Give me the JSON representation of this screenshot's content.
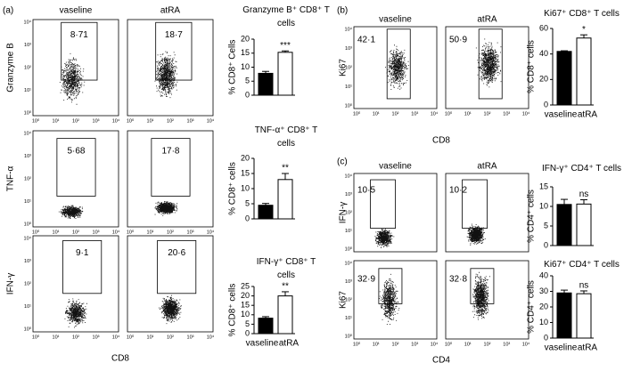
{
  "flow_ticks": [
    "10⁰",
    "10¹",
    "10²",
    "10³",
    "10⁴"
  ],
  "flow_panels": [
    {
      "label": "(a)",
      "columns": [
        "vaseline",
        "atRA"
      ],
      "x_label": "CD8",
      "rows": [
        {
          "y_label": "Granzyme B",
          "gates": [
            "8·71",
            "18·7"
          ]
        },
        {
          "y_label": "TNF-α",
          "gates": [
            "5·68",
            "17·8"
          ]
        },
        {
          "y_label": "IFN-γ",
          "gates": [
            "9·1",
            "20·6"
          ]
        }
      ]
    },
    {
      "label": "(b)",
      "columns": [
        "vaseline",
        "atRA"
      ],
      "x_label": "CD8",
      "rows": [
        {
          "y_label": "Ki67",
          "gates": [
            "42·1",
            "50·9"
          ]
        }
      ]
    },
    {
      "label": "(c)",
      "columns": [
        "vaseline",
        "atRA"
      ],
      "x_label": "CD4",
      "rows": [
        {
          "y_label": "IFN-γ",
          "gates": [
            "10·5",
            "10·2"
          ]
        },
        {
          "y_label": "Ki67",
          "gates": [
            "32·9",
            "32·8"
          ]
        }
      ]
    }
  ],
  "chart_data": [
    {
      "type": "bar",
      "title": "Granzyme B⁺ CD8⁺ T cells",
      "y_label": "% CD8⁺ Cells",
      "categories": [
        null,
        null
      ],
      "values": [
        7.8,
        15.3
      ],
      "errors": [
        0.7,
        0.5
      ],
      "colors": [
        "#000000",
        "#ffffff"
      ],
      "annotation": "***",
      "ylim": [
        0,
        20
      ],
      "yticks": [
        0,
        5,
        10,
        15,
        20
      ]
    },
    {
      "type": "bar",
      "title": "TNF-α⁺ CD8⁺ T cells",
      "y_label": "% CD8⁺ cells",
      "categories": [
        null,
        null
      ],
      "values": [
        4.5,
        13
      ],
      "errors": [
        0.6,
        2
      ],
      "colors": [
        "#000000",
        "#ffffff"
      ],
      "annotation": "**",
      "ylim": [
        0,
        20
      ],
      "yticks": [
        0,
        5,
        10,
        15,
        20
      ]
    },
    {
      "type": "bar",
      "title": "IFN-γ⁺ CD8⁺ T cells",
      "y_label": "% CD8⁺ cells",
      "categories": [
        "vaseline",
        "atRA"
      ],
      "values": [
        8.2,
        20
      ],
      "errors": [
        0.8,
        2.2
      ],
      "colors": [
        "#000000",
        "#ffffff"
      ],
      "annotation": "**",
      "ylim": [
        0,
        25
      ],
      "yticks": [
        0,
        5,
        10,
        15,
        20,
        25
      ]
    },
    {
      "type": "bar",
      "title": "Ki67⁺ CD8⁺ T cells",
      "y_label": "% CD8⁺ cells",
      "categories": [
        "vaseline",
        "atRA"
      ],
      "values": [
        42,
        52.5
      ],
      "errors": [
        0.5,
        2.5
      ],
      "colors": [
        "#000000",
        "#ffffff"
      ],
      "annotation": "*",
      "ylim": [
        0,
        60
      ],
      "yticks": [
        0,
        20,
        40,
        60
      ]
    },
    {
      "type": "bar",
      "title": "IFN-γ⁺ CD4⁺ T cells",
      "y_label": "% CD4⁺ cells",
      "categories": [
        null,
        null
      ],
      "values": [
        10.5,
        10.6
      ],
      "errors": [
        1.3,
        1.1
      ],
      "colors": [
        "#000000",
        "#ffffff"
      ],
      "annotation": "ns",
      "ylim": [
        0,
        15
      ],
      "yticks": [
        0,
        5,
        10,
        15
      ]
    },
    {
      "type": "bar",
      "title": "Ki67⁺ CD4⁺ T cells",
      "y_label": "% CD4⁺ cells",
      "categories": [
        "vaseline",
        "atRA"
      ],
      "values": [
        29,
        28.5
      ],
      "errors": [
        1.8,
        1.8
      ],
      "colors": [
        "#000000",
        "#ffffff"
      ],
      "annotation": "ns",
      "ylim": [
        0,
        40
      ],
      "yticks": [
        0,
        10,
        20,
        30,
        40
      ]
    }
  ]
}
